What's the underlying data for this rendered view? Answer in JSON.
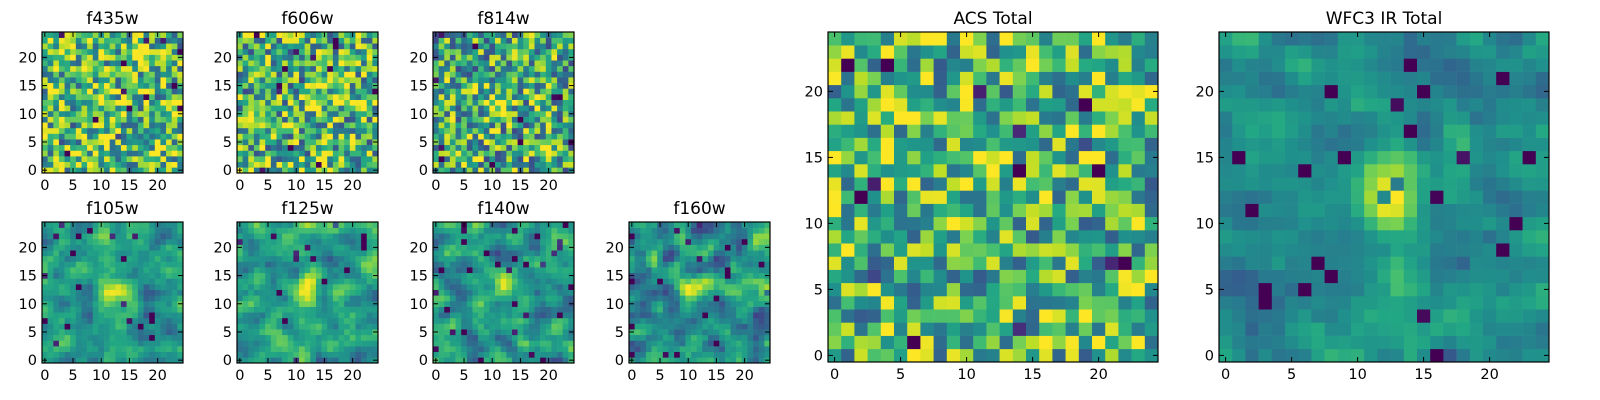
{
  "chart_data": [
    {
      "type": "heatmap",
      "title": "f435w",
      "xticks": [
        0,
        5,
        10,
        15,
        20
      ],
      "yticks": [
        0,
        5,
        10,
        15,
        20
      ],
      "xlim": [
        -0.5,
        24.5
      ],
      "ylim": [
        -0.5,
        24.5
      ],
      "grid": false,
      "colormap": "viridis",
      "peak": [
        12,
        12
      ]
    },
    {
      "type": "heatmap",
      "title": "f606w",
      "xticks": [
        0,
        5,
        10,
        15,
        20
      ],
      "yticks": [
        0,
        5,
        10,
        15,
        20
      ],
      "xlim": [
        -0.5,
        24.5
      ],
      "ylim": [
        -0.5,
        24.5
      ],
      "grid": false,
      "colormap": "viridis",
      "peak": [
        12,
        12
      ]
    },
    {
      "type": "heatmap",
      "title": "f814w",
      "xticks": [
        0,
        5,
        10,
        15,
        20
      ],
      "yticks": [
        0,
        5,
        10,
        15,
        20
      ],
      "xlim": [
        -0.5,
        24.5
      ],
      "ylim": [
        -0.5,
        24.5
      ],
      "grid": false,
      "colormap": "viridis",
      "peak": [
        11,
        12
      ]
    },
    {
      "type": "heatmap",
      "title": "f105w",
      "xticks": [
        0,
        5,
        10,
        15,
        20
      ],
      "yticks": [
        0,
        5,
        10,
        15,
        20
      ],
      "xlim": [
        -0.5,
        24.5
      ],
      "ylim": [
        -0.5,
        24.5
      ],
      "grid": false,
      "colormap": "viridis",
      "peak": [
        12,
        12
      ]
    },
    {
      "type": "heatmap",
      "title": "f125w",
      "xticks": [
        0,
        5,
        10,
        15,
        20
      ],
      "yticks": [
        0,
        5,
        10,
        15,
        20
      ],
      "xlim": [
        -0.5,
        24.5
      ],
      "ylim": [
        -0.5,
        24.5
      ],
      "grid": false,
      "colormap": "viridis",
      "peak": [
        12,
        12
      ]
    },
    {
      "type": "heatmap",
      "title": "f140w",
      "xticks": [
        0,
        5,
        10,
        15,
        20
      ],
      "yticks": [
        0,
        5,
        10,
        15,
        20
      ],
      "xlim": [
        -0.5,
        24.5
      ],
      "ylim": [
        -0.5,
        24.5
      ],
      "grid": false,
      "colormap": "viridis",
      "peak": [
        12,
        12
      ]
    },
    {
      "type": "heatmap",
      "title": "f160w",
      "xticks": [
        0,
        5,
        10,
        15,
        20
      ],
      "yticks": [
        0,
        5,
        10,
        15,
        20
      ],
      "xlim": [
        -0.5,
        24.5
      ],
      "ylim": [
        -0.5,
        24.5
      ],
      "grid": false,
      "colormap": "viridis",
      "peak": [
        11,
        12
      ]
    },
    {
      "type": "heatmap",
      "title": "ACS Total",
      "xticks": [
        0,
        5,
        10,
        15,
        20
      ],
      "yticks": [
        0,
        5,
        10,
        15,
        20
      ],
      "xlim": [
        -0.5,
        24.5
      ],
      "ylim": [
        -0.5,
        24.5
      ],
      "grid": false,
      "colormap": "viridis",
      "peak": [
        12,
        12
      ]
    },
    {
      "type": "heatmap",
      "title": "WFC3 IR Total",
      "xticks": [
        0,
        5,
        10,
        15,
        20
      ],
      "yticks": [
        0,
        5,
        10,
        15,
        20
      ],
      "xlim": [
        -0.5,
        24.5
      ],
      "ylim": [
        -0.5,
        24.5
      ],
      "grid": false,
      "colormap": "viridis",
      "peak": [
        12,
        12
      ]
    }
  ]
}
